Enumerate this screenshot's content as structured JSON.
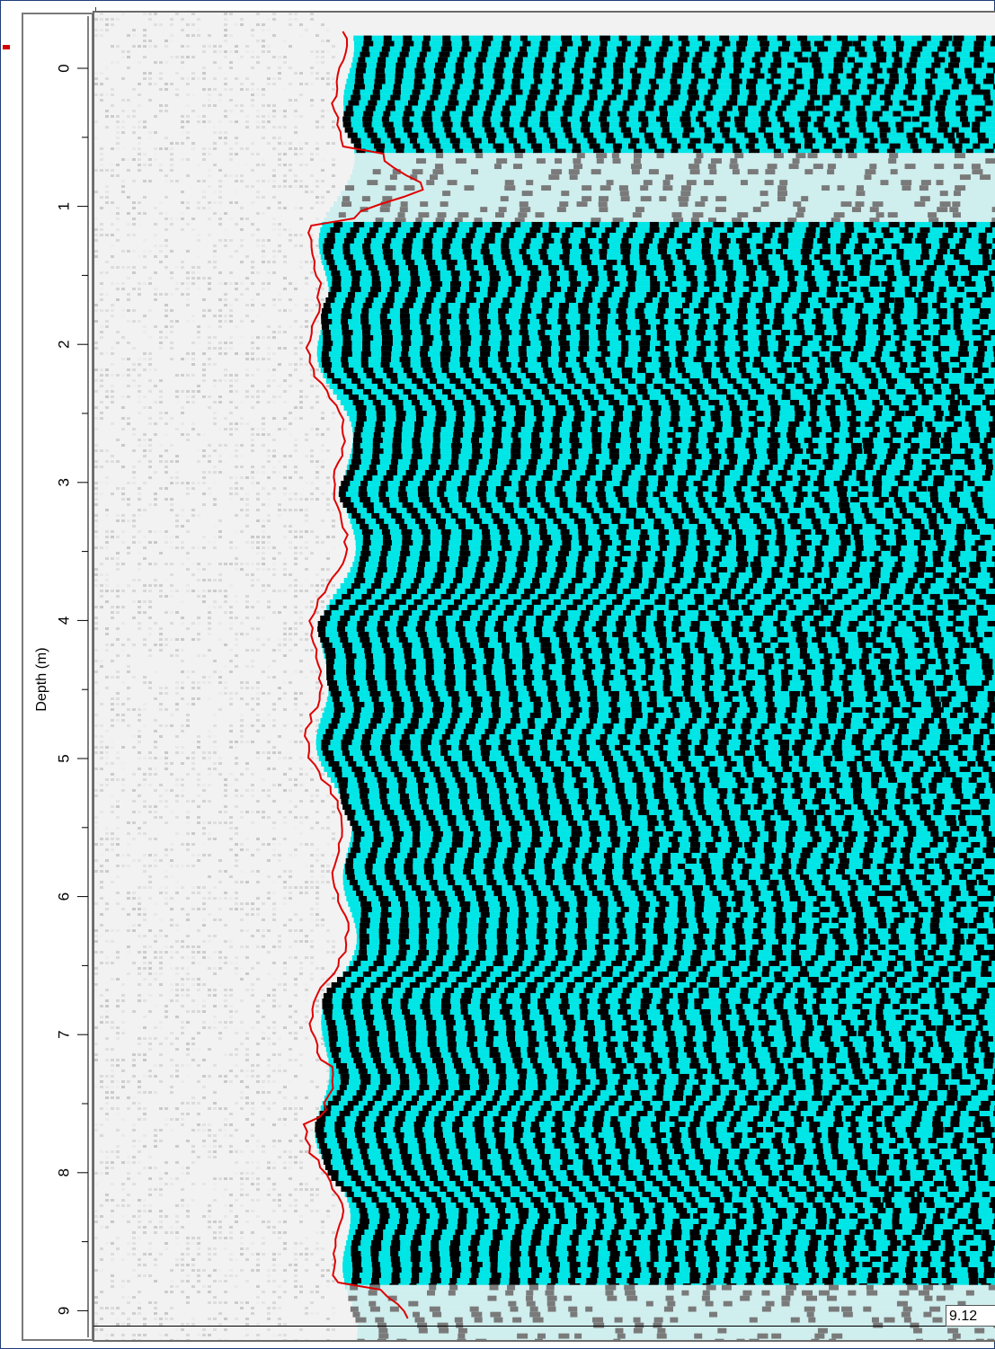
{
  "depth_axis": {
    "title": "Depth (m)",
    "major_ticks": [
      "0",
      "1",
      "2",
      "3",
      "4",
      "5",
      "6",
      "7",
      "8",
      "9"
    ],
    "range": [
      -0.3,
      9.3
    ],
    "minor_step": 0.5
  },
  "readout": {
    "value": "9.12"
  },
  "colors": {
    "background_noise": "#f2f2f2",
    "signal_positive": "#00e5e5",
    "signal_negative": "#000000",
    "trace_line": "#e00000",
    "marker": "#d60000"
  },
  "signal_bands": [
    {
      "depth_start": -0.25,
      "depth_end": 0.6,
      "strength": "strong"
    },
    {
      "depth_start": 0.6,
      "depth_end": 1.1,
      "strength": "weak"
    },
    {
      "depth_start": 1.1,
      "depth_end": 7.5,
      "strength": "strong"
    },
    {
      "depth_start": 7.5,
      "depth_end": 8.8,
      "strength": "strong"
    },
    {
      "depth_start": 8.8,
      "depth_end": 9.3,
      "strength": "weak"
    }
  ]
}
